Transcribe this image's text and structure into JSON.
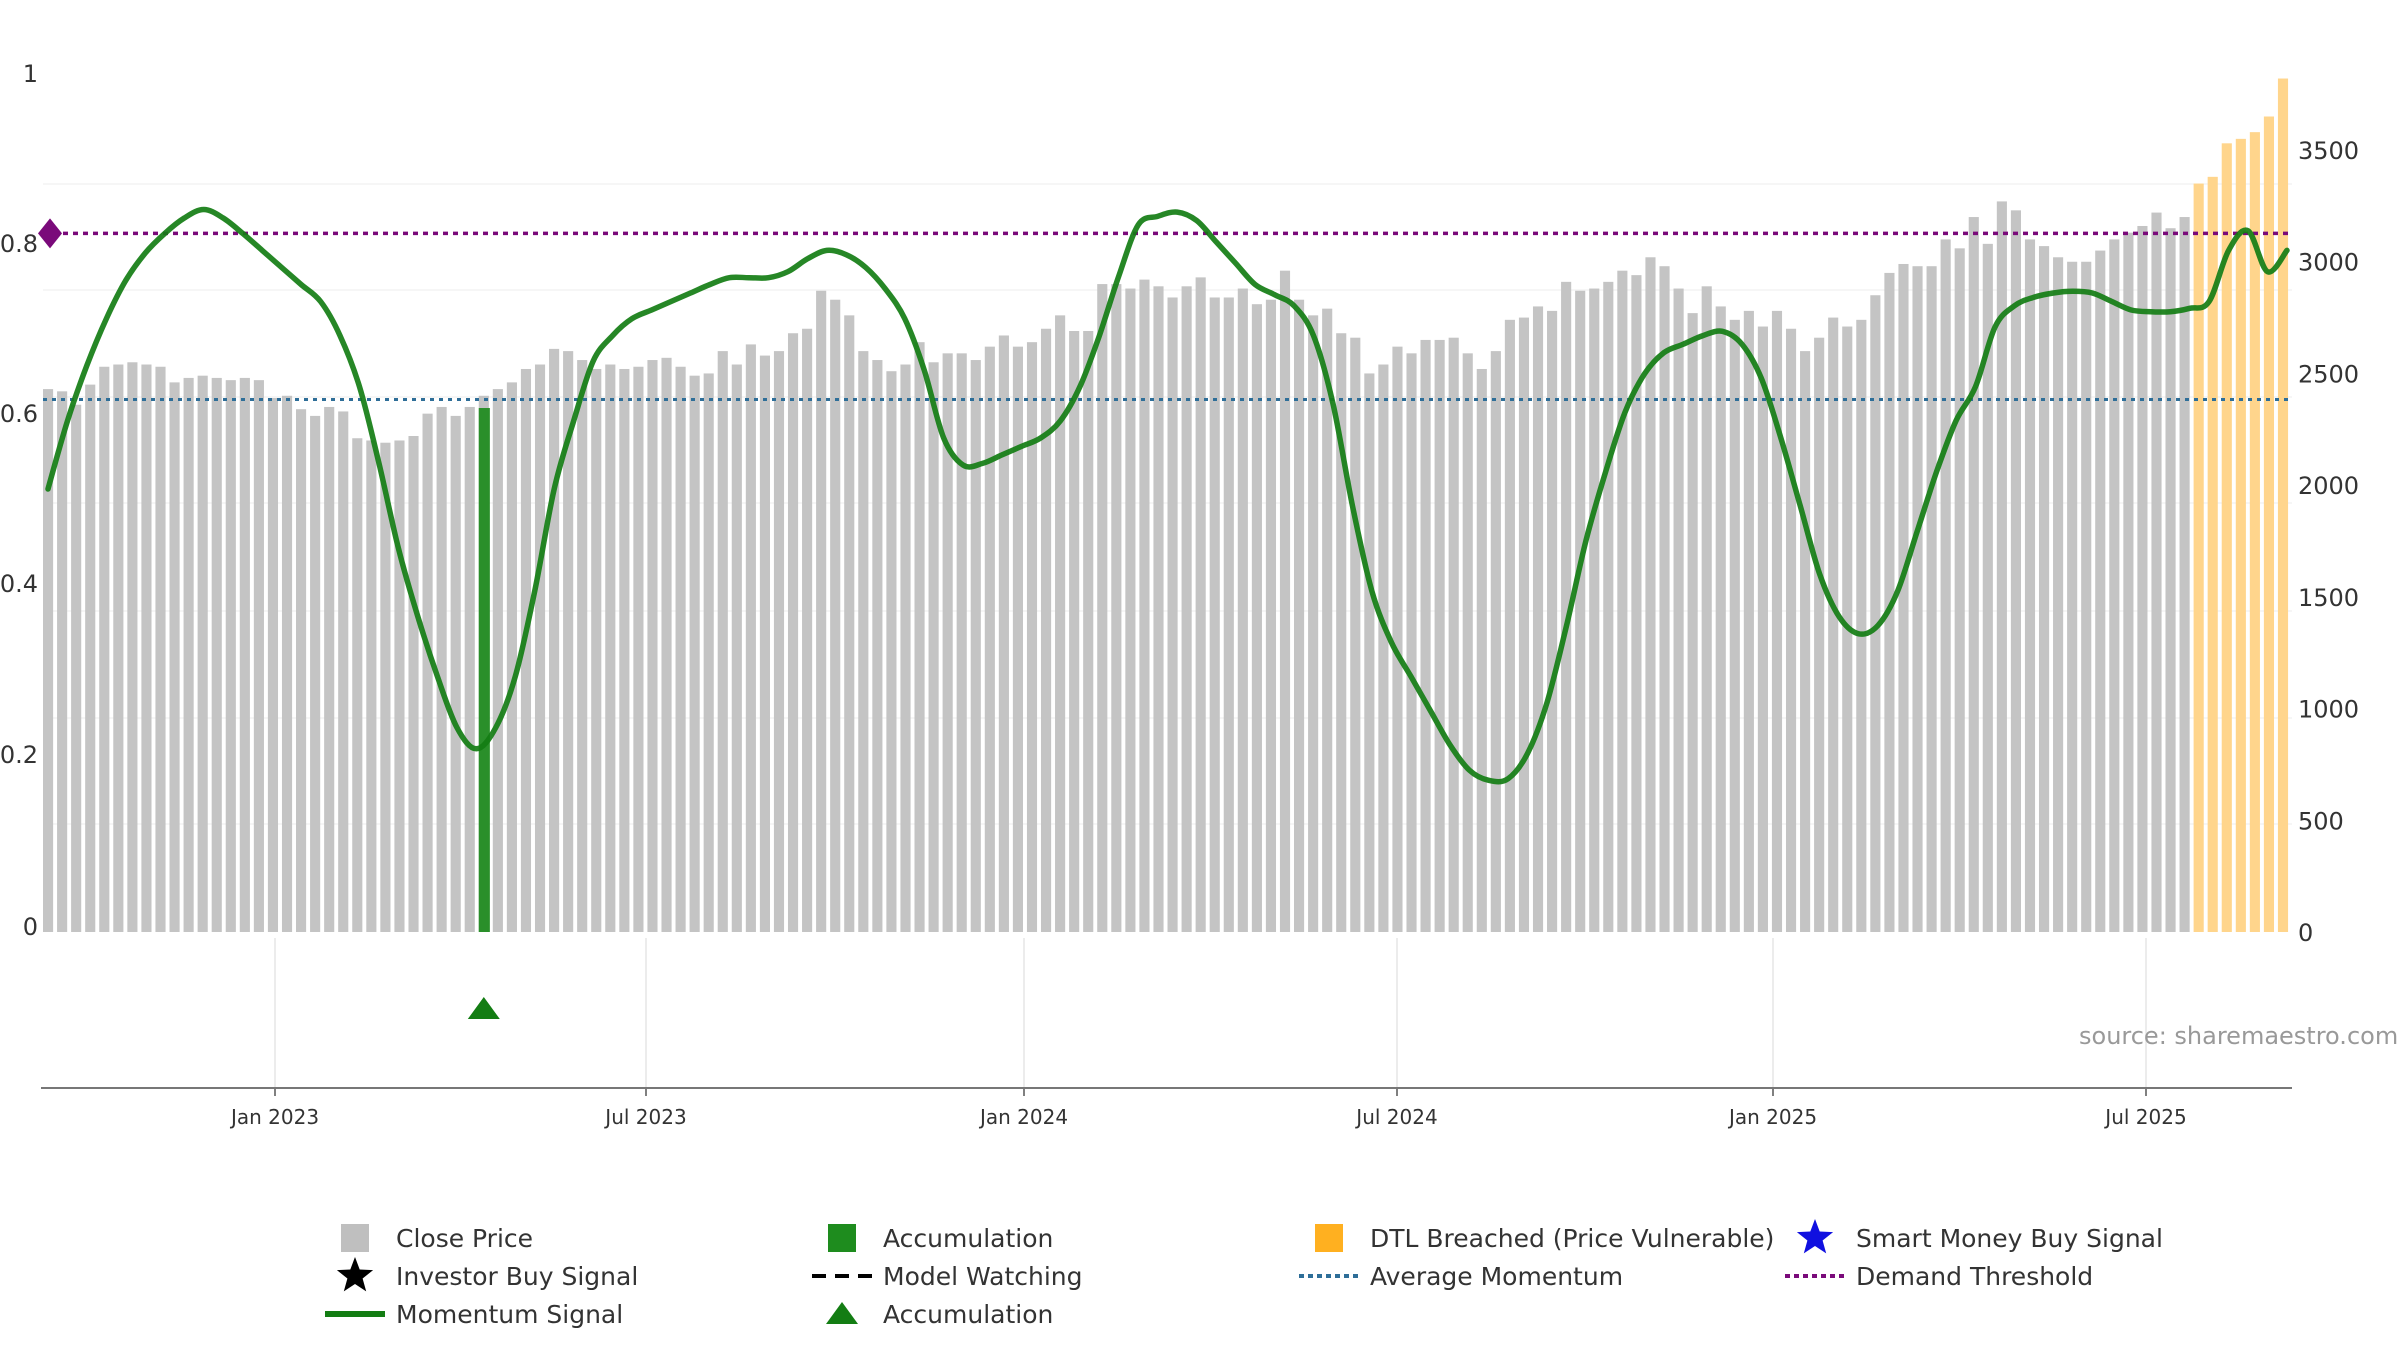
{
  "chart_data": {
    "type": "bar",
    "title": "",
    "source": "source: sharemaestro.com",
    "x_axis": {
      "labels": [
        "Jan 2023",
        "Jul 2023",
        "Jan 2024",
        "Jul 2024",
        "Jan 2025",
        "Jul 2025"
      ]
    },
    "left_axis": {
      "ylim": [
        0,
        1
      ],
      "ticks": [
        "0",
        "0.2",
        "0.4",
        "0.6",
        "0.8",
        "1"
      ],
      "tick_values": [
        0,
        0.2,
        0.4,
        0.6,
        0.8,
        1
      ]
    },
    "right_axis": {
      "ylim": [
        0,
        3800
      ],
      "ticks": [
        "0",
        "500",
        "1000",
        "1500",
        "2000",
        "2500",
        "3000",
        "3500"
      ],
      "tick_values": [
        0,
        500,
        1000,
        1500,
        2000,
        2500,
        3000,
        3500
      ]
    },
    "close_price": [
      2430,
      2420,
      2360,
      2450,
      2530,
      2540,
      2550,
      2540,
      2530,
      2460,
      2480,
      2490,
      2480,
      2470,
      2480,
      2470,
      2390,
      2400,
      2340,
      2310,
      2350,
      2330,
      2210,
      2200,
      2190,
      2200,
      2220,
      2320,
      2350,
      2310,
      2350,
      2400,
      2430,
      2460,
      2520,
      2540,
      2610,
      2600,
      2560,
      2520,
      2540,
      2520,
      2530,
      2560,
      2570,
      2530,
      2490,
      2500,
      2600,
      2540,
      2630,
      2580,
      2600,
      2680,
      2700,
      2870,
      2830,
      2760,
      2600,
      2560,
      2510,
      2540,
      2640,
      2550,
      2590,
      2590,
      2560,
      2620,
      2670,
      2620,
      2640,
      2700,
      2760,
      2690,
      2690,
      2900,
      2900,
      2880,
      2920,
      2890,
      2840,
      2890,
      2930,
      2840,
      2840,
      2880,
      2810,
      2830,
      2960,
      2830,
      2760,
      2790,
      2680,
      2660,
      2500,
      2540,
      2620,
      2590,
      2650,
      2650,
      2660,
      2590,
      2520,
      2600,
      2740,
      2750,
      2800,
      2780,
      2910,
      2870,
      2880,
      2910,
      2960,
      2940,
      3020,
      2980,
      2880,
      2770,
      2890,
      2800,
      2740,
      2780,
      2710,
      2780,
      2700,
      2600,
      2660,
      2750,
      2710,
      2740,
      2850,
      2950,
      2990,
      2980,
      2980,
      3100,
      3060,
      3200,
      3080,
      3270,
      3230,
      3100,
      3070,
      3020,
      3000,
      3000,
      3050,
      3100,
      3130,
      3160,
      3220,
      3150,
      3200
    ],
    "breached_price": [
      3350,
      3380,
      3530,
      3550,
      3580,
      3650,
      3820
    ],
    "accumulation_bar_index": 31,
    "accumulation_marker_index": 31,
    "momentum": [
      0.52,
      0.6,
      0.665,
      0.72,
      0.765,
      0.797,
      0.82,
      0.838,
      0.848,
      0.838,
      0.82,
      0.8,
      0.78,
      0.76,
      0.74,
      0.7,
      0.64,
      0.55,
      0.45,
      0.37,
      0.3,
      0.24,
      0.215,
      0.24,
      0.3,
      0.4,
      0.52,
      0.6,
      0.67,
      0.7,
      0.72,
      0.73,
      0.74,
      0.75,
      0.76,
      0.768,
      0.768,
      0.768,
      0.775,
      0.79,
      0.8,
      0.795,
      0.78,
      0.755,
      0.72,
      0.66,
      0.58,
      0.548,
      0.55,
      0.56,
      0.57,
      0.58,
      0.6,
      0.64,
      0.7,
      0.77,
      0.83,
      0.84,
      0.845,
      0.835,
      0.81,
      0.785,
      0.76,
      0.748,
      0.735,
      0.7,
      0.62,
      0.5,
      0.4,
      0.34,
      0.3,
      0.26,
      0.22,
      0.19,
      0.178,
      0.18,
      0.21,
      0.27,
      0.36,
      0.46,
      0.54,
      0.61,
      0.655,
      0.68,
      0.69,
      0.7,
      0.705,
      0.69,
      0.65,
      0.58,
      0.5,
      0.42,
      0.37,
      0.35,
      0.36,
      0.4,
      0.47,
      0.54,
      0.6,
      0.64,
      0.71,
      0.735,
      0.745,
      0.75,
      0.752,
      0.75,
      0.74,
      0.73,
      0.728,
      0.728,
      0.732,
      0.74,
      0.8,
      0.823,
      0.775,
      0.8
    ],
    "average_momentum": 0.625,
    "demand_threshold": 0.82,
    "legend": [
      {
        "label": "Close Price",
        "symbol": "gray-square",
        "color": "#bfbfbf"
      },
      {
        "label": "Accumulation",
        "symbol": "green-square",
        "color": "#1e8c1e"
      },
      {
        "label": "DTL Breached (Price Vulnerable)",
        "symbol": "orange-square",
        "color": "#ffb020"
      },
      {
        "label": "Smart Money Buy Signal",
        "symbol": "blue-star",
        "color": "#1010e0"
      },
      {
        "label": "Investor Buy Signal",
        "symbol": "black-star",
        "color": "#000000"
      },
      {
        "label": "Model Watching",
        "symbol": "black-dash-line",
        "color": "#000000"
      },
      {
        "label": "Average Momentum",
        "symbol": "blue-dotted-line",
        "color": "#2e6e98"
      },
      {
        "label": "Demand Threshold",
        "symbol": "purple-dotted-line",
        "color": "#7a0a7a"
      },
      {
        "label": "Momentum Signal",
        "symbol": "green-line",
        "color": "#137d13"
      },
      {
        "label": "Accumulation",
        "symbol": "green-triangle",
        "color": "#137d13"
      }
    ]
  }
}
